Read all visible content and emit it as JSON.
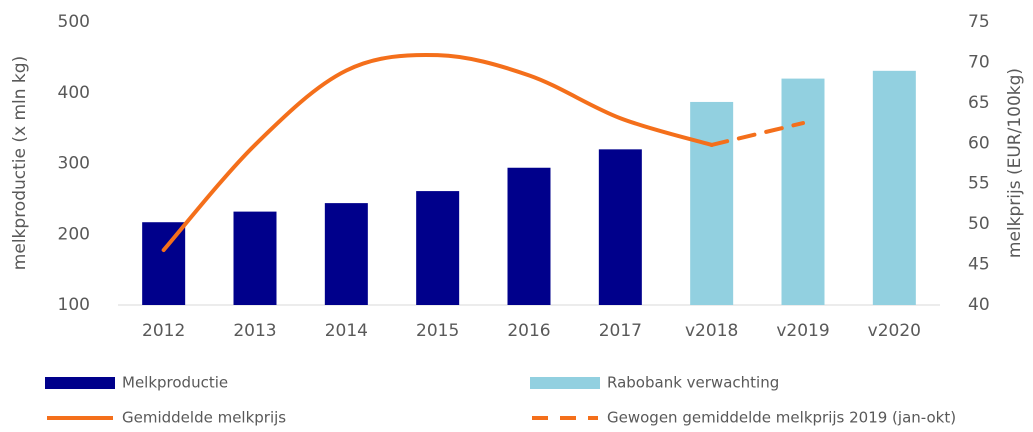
{
  "chart_data": {
    "type": "bar",
    "categories": [
      "2012",
      "2013",
      "2014",
      "2015",
      "2016",
      "2017",
      "v2018",
      "v2019",
      "v2020"
    ],
    "ylabel": "melkproductie (x mln kg)",
    "y2label": "melkprijs (EUR/100kg)",
    "ylim": [
      100,
      500
    ],
    "yticks": [
      100,
      200,
      300,
      400,
      500
    ],
    "y2lim": [
      40,
      75
    ],
    "y2ticks": [
      40,
      45,
      50,
      55,
      60,
      65,
      70,
      75
    ],
    "series": [
      {
        "name": "Melkproductie",
        "type": "bar",
        "color": "#00008b",
        "values": [
          217,
          232,
          244,
          261,
          294,
          320,
          null,
          null,
          null
        ]
      },
      {
        "name": "Rabobank verwachting",
        "type": "bar",
        "color": "#92d0e0",
        "values": [
          null,
          null,
          null,
          null,
          null,
          null,
          387,
          420,
          431
        ]
      },
      {
        "name": "Gemiddelde melkprijs",
        "type": "line",
        "axis": "y2",
        "color": "#f46f1b",
        "dashed": false,
        "values": [
          46.8,
          59.8,
          69,
          70.9,
          68.4,
          63.1,
          59.8,
          null,
          null
        ]
      },
      {
        "name": "Gewogen gemiddelde melkprijs 2019 (jan-okt)",
        "type": "line",
        "axis": "y2",
        "color": "#f46f1b",
        "dashed": true,
        "values": [
          null,
          null,
          null,
          null,
          null,
          null,
          59.8,
          62.5,
          null
        ]
      }
    ]
  }
}
